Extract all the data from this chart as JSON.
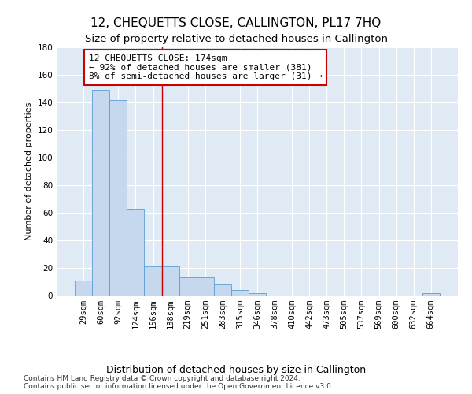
{
  "title": "12, CHEQUETTS CLOSE, CALLINGTON, PL17 7HQ",
  "subtitle": "Size of property relative to detached houses in Callington",
  "xlabel": "Distribution of detached houses by size in Callington",
  "ylabel": "Number of detached properties",
  "bar_color": "#c5d8ed",
  "bar_edge_color": "#5a9fd4",
  "background_color": "#e0eaf5",
  "categories": [
    "29sqm",
    "60sqm",
    "92sqm",
    "124sqm",
    "156sqm",
    "188sqm",
    "219sqm",
    "251sqm",
    "283sqm",
    "315sqm",
    "346sqm",
    "378sqm",
    "410sqm",
    "442sqm",
    "473sqm",
    "505sqm",
    "537sqm",
    "569sqm",
    "600sqm",
    "632sqm",
    "664sqm"
  ],
  "values": [
    11,
    149,
    142,
    63,
    21,
    21,
    13,
    13,
    8,
    4,
    2,
    0,
    0,
    0,
    0,
    0,
    0,
    0,
    0,
    0,
    2
  ],
  "vline_x_index": 5,
  "vline_color": "#cc0000",
  "annotation_line1": "12 CHEQUETTS CLOSE: 174sqm",
  "annotation_line2": "← 92% of detached houses are smaller (381)",
  "annotation_line3": "8% of semi-detached houses are larger (31) →",
  "annotation_box_color": "#ffffff",
  "annotation_box_edge_color": "#cc0000",
  "ylim": [
    0,
    180
  ],
  "yticks": [
    0,
    20,
    40,
    60,
    80,
    100,
    120,
    140,
    160,
    180
  ],
  "footer": "Contains HM Land Registry data © Crown copyright and database right 2024.\nContains public sector information licensed under the Open Government Licence v3.0.",
  "title_fontsize": 11,
  "subtitle_fontsize": 9.5,
  "xlabel_fontsize": 9,
  "ylabel_fontsize": 8,
  "tick_fontsize": 7.5,
  "annotation_fontsize": 8,
  "footer_fontsize": 6.5
}
